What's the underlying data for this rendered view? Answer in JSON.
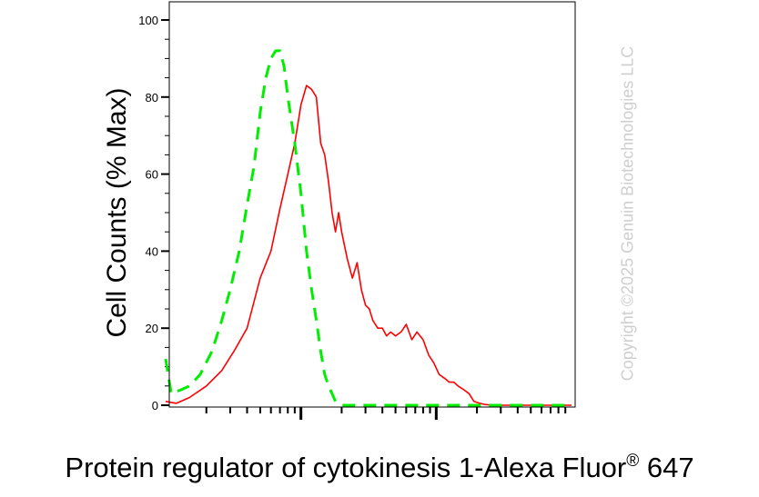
{
  "chart_data": {
    "type": "line",
    "xlabel_main": "Protein regulator of cytokinesis 1-Alexa Fluor",
    "xlabel_reg": "®",
    "xlabel_suffix": " 647",
    "ylabel": "Cell Counts (% Max)",
    "ylim": [
      0,
      100
    ],
    "yticks": [
      0,
      20,
      40,
      60,
      80,
      100
    ],
    "xscale": "log",
    "xlim": [
      1,
      1000
    ],
    "xticks_major": [
      10,
      100
    ],
    "xtick_labels": [],
    "grid": false,
    "legend": "none",
    "series": [
      {
        "color": "#ff0000",
        "style": "solid",
        "x": [
          1,
          1.2,
          1.5,
          2,
          2.6,
          3.2,
          4,
          5,
          6,
          7,
          8,
          9,
          10,
          11,
          12,
          13,
          14,
          15,
          16,
          17,
          18,
          19,
          20,
          22,
          24,
          26,
          28,
          30,
          32,
          34,
          37,
          40,
          43,
          46,
          50,
          55,
          60,
          66,
          72,
          80,
          88,
          96,
          105,
          115,
          125,
          135,
          145,
          160,
          175,
          190,
          210,
          230,
          260,
          300,
          340,
          380,
          420,
          460,
          500,
          600,
          700,
          800,
          1000
        ],
        "y": [
          1,
          0.5,
          2,
          5,
          9,
          14,
          20,
          33,
          40,
          51,
          60,
          68,
          78,
          83,
          82,
          80,
          68,
          65,
          58,
          50,
          45,
          50,
          45,
          38,
          33,
          37,
          30,
          26,
          25,
          22,
          20,
          20,
          18,
          19,
          18,
          19,
          21,
          17,
          19,
          17,
          13,
          11,
          8,
          7,
          6,
          6,
          5,
          4,
          3,
          1,
          0.5,
          0.2,
          0,
          0,
          0,
          0,
          0,
          0,
          0,
          0,
          0,
          0,
          0
        ]
      },
      {
        "color": "#00ee00",
        "style": "dashed",
        "x": [
          1,
          1.1,
          1.3,
          1.5,
          1.8,
          2.2,
          2.6,
          3,
          3.5,
          4,
          4.5,
          5,
          5.5,
          6,
          6.5,
          7,
          7.5,
          8,
          9,
          10,
          11,
          12,
          13,
          14,
          15,
          16,
          17,
          18,
          20,
          22,
          25,
          30,
          40,
          60,
          100,
          200,
          400,
          1000
        ],
        "y": [
          12,
          3,
          4,
          5,
          8,
          14,
          22,
          30,
          40,
          52,
          62,
          76,
          85,
          90,
          92,
          92,
          88,
          80,
          68,
          55,
          40,
          30,
          22,
          14,
          8,
          5,
          3,
          1,
          0,
          0,
          0,
          0,
          0,
          0,
          0,
          0,
          0,
          0
        ]
      }
    ]
  },
  "watermark": "Copyright ©2025 Genuin Biotechnologies LLC"
}
